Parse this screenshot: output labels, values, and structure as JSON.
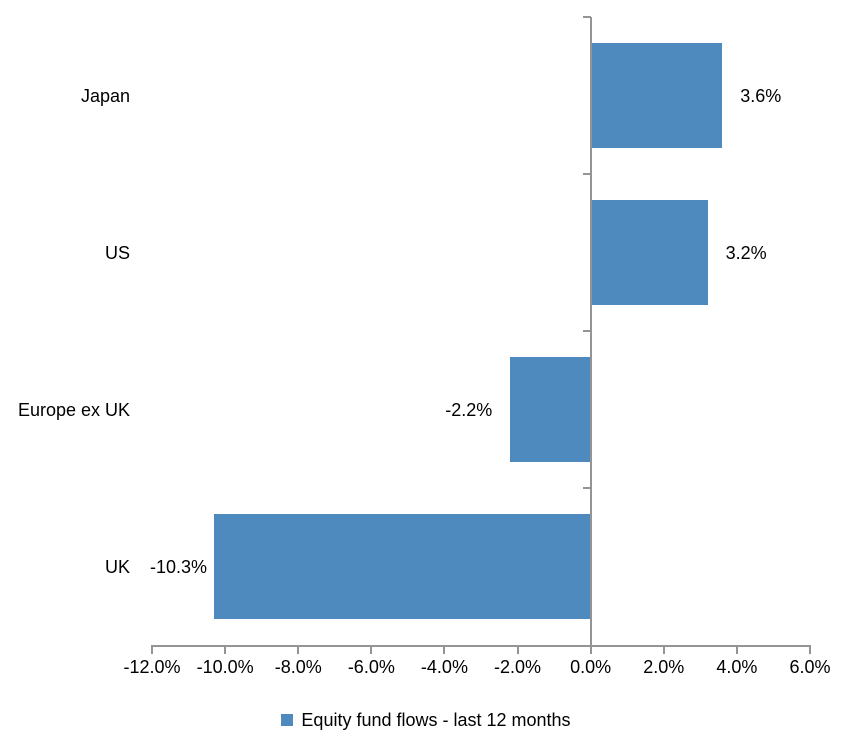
{
  "chart_data": {
    "type": "bar",
    "orientation": "horizontal",
    "title": "",
    "xlabel": "",
    "ylabel": "",
    "categories": [
      "Japan",
      "US",
      "Europe ex UK",
      "UK"
    ],
    "series": [
      {
        "name": "Equity fund flows - last 12 months",
        "values": [
          3.6,
          3.2,
          -2.2,
          -10.3
        ],
        "data_labels": [
          "3.6%",
          "3.2%",
          "-2.2%",
          "-10.3%"
        ]
      }
    ],
    "xlim": [
      -12,
      6
    ],
    "x_tick_step": 2,
    "x_tick_labels": [
      "-12.0%",
      "-10.0%",
      "-8.0%",
      "-6.0%",
      "-4.0%",
      "-2.0%",
      "0.0%",
      "2.0%",
      "4.0%",
      "6.0%"
    ],
    "grid": false,
    "legend_position": "bottom",
    "colors": {
      "bar": "#4E8ABE",
      "axis": "#949494",
      "text": "#000000",
      "background": "#FFFFFF"
    }
  },
  "legend": {
    "label": "Equity fund flows - last 12 months"
  }
}
